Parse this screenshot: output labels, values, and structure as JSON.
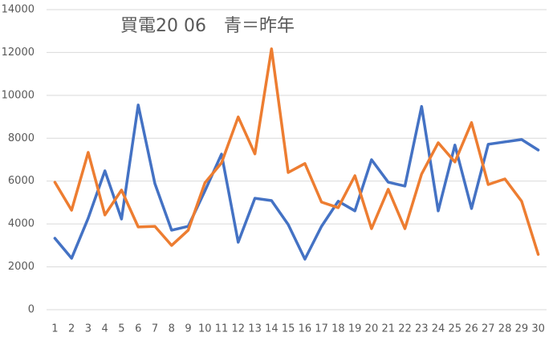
{
  "chart_data": {
    "type": "line",
    "title": "買電20  06　青＝昨年",
    "categories": [
      "1",
      "2",
      "3",
      "4",
      "5",
      "6",
      "7",
      "8",
      "9",
      "10",
      "11",
      "12",
      "13",
      "14",
      "15",
      "16",
      "17",
      "18",
      "19",
      "20",
      "21",
      "22",
      "23",
      "24",
      "25",
      "26",
      "27",
      "28",
      "29",
      "30"
    ],
    "series": [
      {
        "color": "#4472c4",
        "values": [
          3330,
          2400,
          4270,
          6480,
          4230,
          9550,
          5880,
          3710,
          3890,
          5540,
          7260,
          3150,
          5200,
          5090,
          3970,
          2360,
          3890,
          5060,
          4610,
          7000,
          5950,
          5770,
          9480,
          4610,
          7680,
          4720,
          7720,
          7830,
          7940,
          7450
        ]
      },
      {
        "color": "#ed7d31",
        "values": [
          5950,
          4640,
          7340,
          4420,
          5580,
          3860,
          3890,
          3000,
          3710,
          5920,
          6850,
          8990,
          7270,
          12170,
          6400,
          6820,
          5020,
          4760,
          6250,
          3780,
          5620,
          3780,
          6330,
          7790,
          6890,
          8730,
          5840,
          6100,
          5060,
          2580
        ]
      }
    ],
    "ylim": [
      0,
      14000
    ],
    "yticks": [
      0,
      2000,
      4000,
      6000,
      8000,
      10000,
      12000,
      14000
    ],
    "grid": true
  }
}
